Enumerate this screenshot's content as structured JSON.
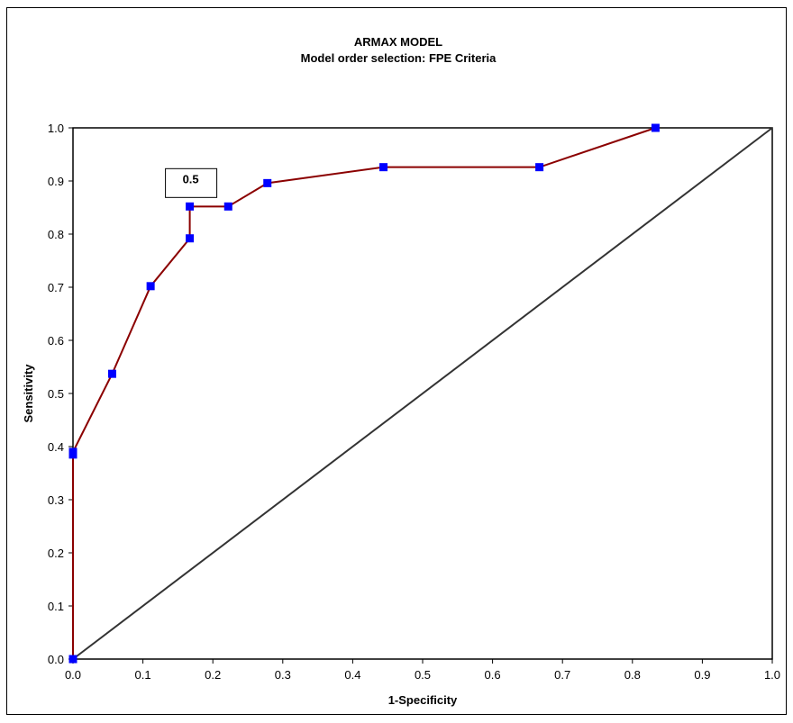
{
  "chart_data": {
    "type": "line",
    "title": "ARMAX MODEL",
    "subtitle": "Model order selection: FPE Criteria",
    "xlabel": "1-Specificity",
    "ylabel": "Sensitivity",
    "xlim": [
      0,
      1
    ],
    "ylim": [
      0,
      1
    ],
    "x_ticks": [
      "0.0",
      "0.1",
      "0.2",
      "0.3",
      "0.4",
      "0.5",
      "0.6",
      "0.7",
      "0.8",
      "0.9",
      "1.0"
    ],
    "y_ticks": [
      "0.0",
      "0.1",
      "0.2",
      "0.3",
      "0.4",
      "0.5",
      "0.6",
      "0.7",
      "0.8",
      "0.9",
      "1.0"
    ],
    "grid": false,
    "series": [
      {
        "color": "#8b0000",
        "marker_color": "#0000ff",
        "marker": "square",
        "x": [
          0.0,
          0.0,
          0.0,
          0.056,
          0.111,
          0.167,
          0.167,
          0.222,
          0.278,
          0.444,
          0.667,
          0.833
        ],
        "y": [
          0.0,
          0.385,
          0.39,
          0.537,
          0.702,
          0.792,
          0.852,
          0.852,
          0.896,
          0.926,
          0.926,
          1.0
        ]
      }
    ],
    "reference_line": {
      "x": [
        0,
        1
      ],
      "y": [
        0,
        1
      ],
      "color": "#333333"
    },
    "annotations": [
      {
        "text": "0.5",
        "x": 0.167,
        "y": 0.852
      }
    ]
  }
}
